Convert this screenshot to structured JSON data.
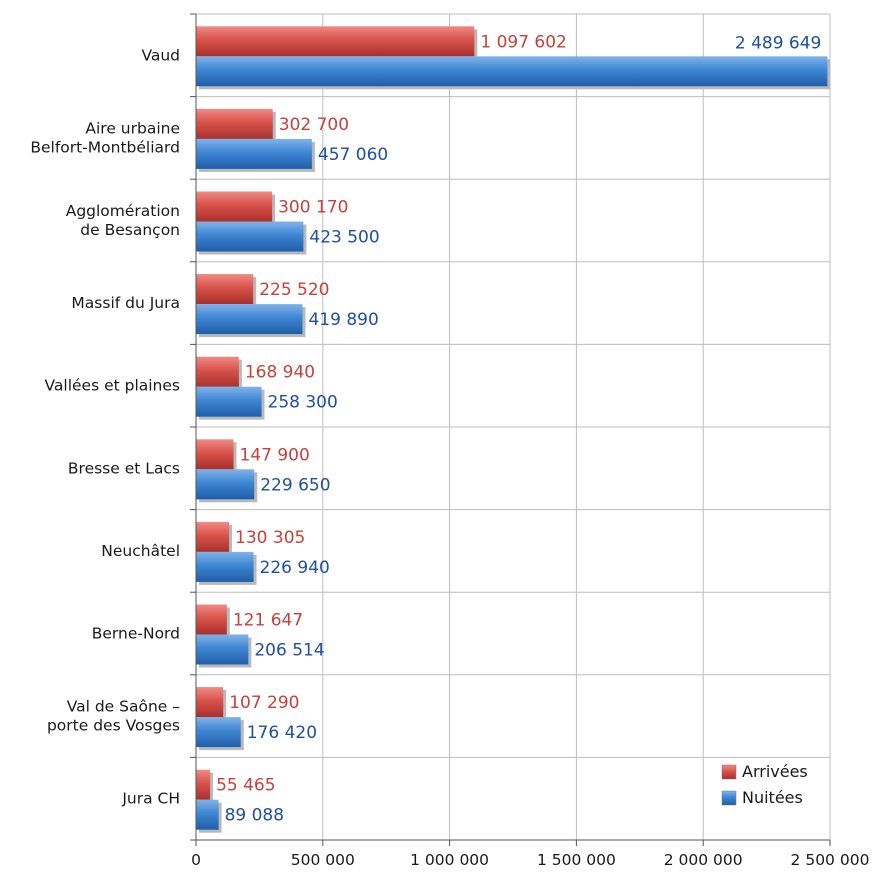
{
  "chart_data": {
    "type": "bar",
    "orientation": "horizontal",
    "categories": [
      [
        "Vaud"
      ],
      [
        "Aire urbaine",
        "Belfort-Montbéliard"
      ],
      [
        "Agglomération",
        "de Besançon"
      ],
      [
        "Massif du Jura"
      ],
      [
        "Vallées et plaines"
      ],
      [
        "Bresse et Lacs"
      ],
      [
        "Neuchâtel"
      ],
      [
        "Berne-Nord"
      ],
      [
        "Val de Saône –",
        "porte des Vosges"
      ],
      [
        "Jura CH"
      ]
    ],
    "series": [
      {
        "name": "Arrivées",
        "color": "#c9403a",
        "values": [
          1097602,
          302700,
          300170,
          225520,
          168940,
          147900,
          130305,
          121647,
          107290,
          55465
        ],
        "labels": [
          "1 097 602",
          "302 700",
          "300 170",
          "225 520",
          "168 940",
          "147 900",
          "130 305",
          "121 647",
          "107 290",
          "55 465"
        ]
      },
      {
        "name": "Nuitées",
        "color": "#2f72c0",
        "values": [
          2489649,
          457060,
          423500,
          419890,
          258300,
          229650,
          226940,
          206514,
          176420,
          89088
        ],
        "labels": [
          "2 489 649",
          "457 060",
          "423 500",
          "419 890",
          "258 300",
          "229 650",
          "226 940",
          "206 514",
          "176 420",
          "89 088"
        ]
      }
    ],
    "xlim": [
      0,
      2500000
    ],
    "xticks": [
      0,
      500000,
      1000000,
      1500000,
      2000000,
      2500000
    ],
    "xtick_labels": [
      "0",
      "500 000",
      "1 000 000",
      "1 500 000",
      "2 000 000",
      "2 500 000"
    ],
    "grid": true,
    "legend_position": "bottom-right",
    "title": "",
    "xlabel": "",
    "ylabel": ""
  }
}
